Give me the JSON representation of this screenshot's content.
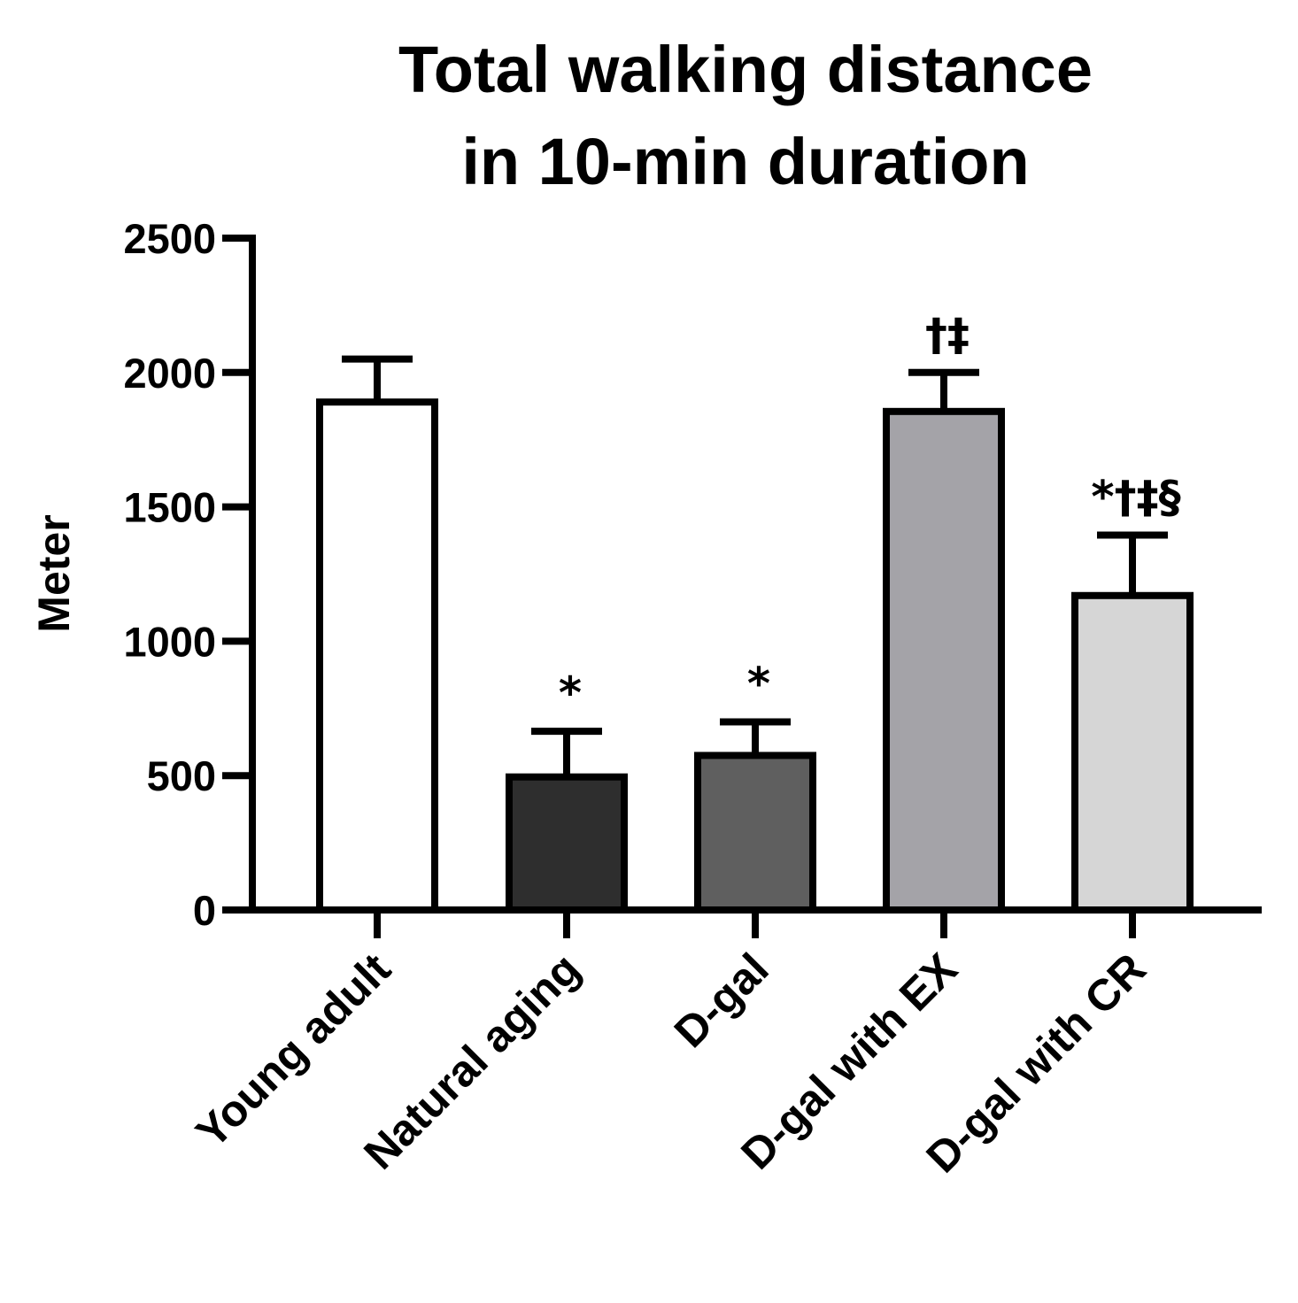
{
  "chart_data": {
    "type": "bar",
    "title_lines": [
      "Total walking distance",
      "in 10-min duration"
    ],
    "ylabel": "Meter",
    "xlabel": "",
    "ylim": [
      0,
      2500
    ],
    "yticks": [
      0,
      500,
      1000,
      1500,
      2000,
      2500
    ],
    "grid": false,
    "categories": [
      "Young adult",
      "Natural aging",
      "D-gal",
      "D-gal with EX",
      "D-gal with CR"
    ],
    "values": [
      1890,
      495,
      575,
      1855,
      1170
    ],
    "errors": [
      160,
      170,
      125,
      145,
      225
    ],
    "annotations": [
      "",
      "*",
      "*",
      "†‡",
      "*†‡§"
    ],
    "colors": [
      "#ffffff",
      "#2e2e2e",
      "#5f5f5f",
      "#a4a3a8",
      "#d6d6d6"
    ]
  }
}
